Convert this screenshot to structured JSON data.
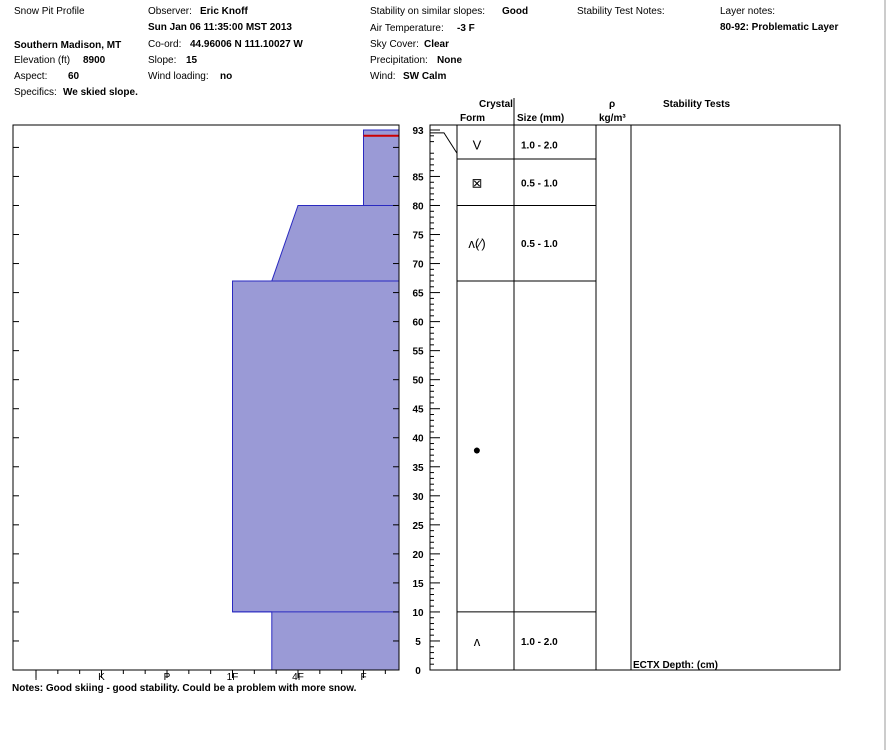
{
  "header": {
    "title": "Snow Pit Profile",
    "location": "Southern Madison, MT",
    "elevation_label": "Elevation (ft)",
    "elevation_value": "8900",
    "aspect_label": "Aspect:",
    "aspect_value": "60",
    "specifics_label": "Specifics:",
    "specifics_value": "We skied slope.",
    "observer_label": "Observer:",
    "observer_value": "Eric Knoff",
    "datetime": "Sun Jan 06 11:35:00 MST 2013",
    "coord_label": "Co-ord:",
    "coord_value": "44.96006 N 111.10027 W",
    "slope_label": "Slope:",
    "slope_value": "15",
    "wind_loading_label": "Wind loading:",
    "wind_loading_value": "no",
    "stability_label": "Stability on similar slopes:",
    "stability_value": "Good",
    "air_temp_label": "Air Temperature:",
    "air_temp_value": "-3 F",
    "sky_label": "Sky Cover:",
    "sky_value": "Clear",
    "precip_label": "Precipitation:",
    "precip_value": "None",
    "wind_label": "Wind:",
    "wind_value": "SW Calm",
    "stability_notes_label": "Stability Test Notes:",
    "layer_notes_label": "Layer notes:",
    "layer_notes_value": "80-92: Problematic Layer"
  },
  "table_header": {
    "crystal": "Crystal",
    "form": "Form",
    "size": "Size (mm)",
    "rho": "ρ",
    "density_unit": "kg/m³",
    "stability_tests": "Stability Tests"
  },
  "footer": {
    "notes": "Notes:  Good skiing - good stability.  Could be a problem with more snow.",
    "ectx": "ECTX  Depth: (cm)"
  },
  "colors": {
    "hardness_fill": "#9a9ad6",
    "hardness_stroke": "#2a2ac0",
    "problem_line": "#cc0000",
    "grid": "#000000"
  },
  "chart_data": {
    "type": "area",
    "xlabel": "",
    "ylabel": "",
    "hardness_scale": [
      "I",
      "K",
      "P",
      "1F",
      "4F",
      "F"
    ],
    "depth_range": [
      0,
      93
    ],
    "depth_ticks": [
      93,
      85,
      80,
      75,
      70,
      65,
      60,
      55,
      50,
      45,
      40,
      35,
      30,
      25,
      20,
      15,
      10,
      5,
      0
    ],
    "hardness_profile": [
      {
        "depth": 93,
        "hardness_index": 5
      },
      {
        "depth": 80,
        "hardness_index": 5
      },
      {
        "depth": 80,
        "hardness_index": 4
      },
      {
        "depth": 67,
        "hardness_index": 3.6
      },
      {
        "depth": 67,
        "hardness_index": 3
      },
      {
        "depth": 10,
        "hardness_index": 3
      },
      {
        "depth": 10,
        "hardness_index": 3.6
      },
      {
        "depth": 0,
        "hardness_index": 3.6
      }
    ],
    "problematic_layer_depth": 92,
    "layer_boundaries": [
      88,
      80,
      67,
      10
    ],
    "layers": [
      {
        "depth": 90.5,
        "form": "surface-hoar",
        "form_symbol": "V",
        "size": "1.0 - 2.0"
      },
      {
        "depth": 84,
        "form": "faceted",
        "form_symbol": "⊠",
        "size": "0.5 - 1.0"
      },
      {
        "depth": 73.5,
        "form": "depth-hoar-mixed",
        "form_symbol": "ʌ(⁄)",
        "size": "0.5 - 1.0"
      },
      {
        "depth": 38,
        "form": "melt-freeze",
        "form_symbol": "●",
        "size": ""
      },
      {
        "depth": 5,
        "form": "depth-hoar",
        "form_symbol": "ʌ",
        "size": "1.0 - 2.0"
      }
    ]
  }
}
